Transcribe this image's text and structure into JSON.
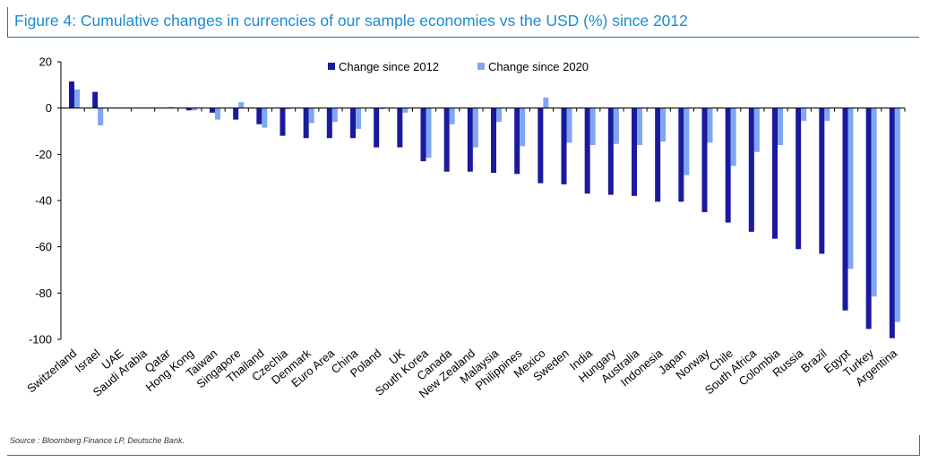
{
  "title": "Figure 4: Cumulative changes in currencies of our sample economies vs the USD (%) since 2012",
  "source": "Source : Bloomberg Finance LP, Deutsche Bank.",
  "colors": {
    "accent": "#1b8bd1",
    "series_2012": "#1a1a9e",
    "series_2020": "#7fa6f2"
  },
  "chart_data": {
    "type": "bar",
    "title": "Figure 4: Cumulative changes in currencies of our sample economies vs the USD (%) since 2012",
    "xlabel": "",
    "ylabel": "",
    "ylim": [
      -100,
      20
    ],
    "yticks": [
      "20",
      "0",
      "-20",
      "-40",
      "-60",
      "-80",
      "-100"
    ],
    "legend_position": "top-center",
    "categories": [
      "Switzerland",
      "Israel",
      "UAE",
      "Saudi Arabia",
      "Qatar",
      "Hong Kong",
      "Taiwan",
      "Singapore",
      "Thailand",
      "Czechia",
      "Denmark",
      "Euro Area",
      "China",
      "Poland",
      "UK",
      "South Korea",
      "Canada",
      "New Zealand",
      "Malaysia",
      "Philippines",
      "Mexico",
      "Sweden",
      "India",
      "Hungary",
      "Australia",
      "Indonesia",
      "Japan",
      "Norway",
      "Chile",
      "South Africa",
      "Colombia",
      "Russia",
      "Brazil",
      "Egypt",
      "Turkey",
      "Argentina"
    ],
    "series": [
      {
        "name": "Change since 2012",
        "values": [
          11.5,
          7,
          0,
          0,
          0,
          -1,
          -2,
          -5,
          -7,
          -12,
          -13,
          -13,
          -13,
          -17,
          -17,
          -23,
          -27.5,
          -27.5,
          -28,
          -28.5,
          -32.5,
          -33,
          -37,
          -37.5,
          -38,
          -40.5,
          -40.5,
          -45,
          -49.5,
          -53.5,
          -56.5,
          -61,
          -63,
          -87.5,
          -95.5,
          -99.5
        ]
      },
      {
        "name": "Change since 2020",
        "values": [
          8,
          -7.5,
          0,
          0,
          0.5,
          -1,
          -5,
          2.5,
          -8.5,
          -0.5,
          -6.5,
          -6,
          -9,
          -0.5,
          -2,
          -21.5,
          -7,
          -17,
          -6,
          -16.5,
          4.5,
          -15,
          -16,
          -15.5,
          -16,
          -14.5,
          -29,
          -15,
          -25,
          -19,
          -16,
          -5.5,
          -5.5,
          -69.5,
          -81.5,
          -92.5
        ]
      }
    ]
  }
}
